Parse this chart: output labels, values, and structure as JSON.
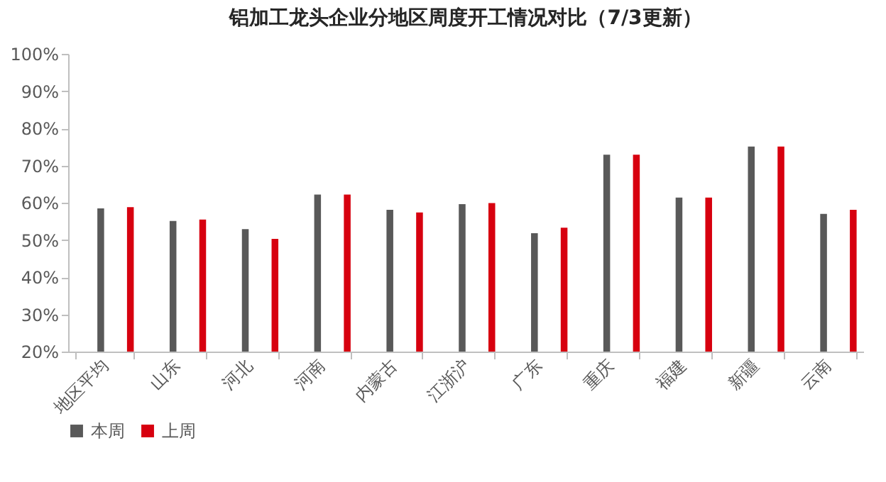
{
  "chart_data": {
    "type": "bar",
    "title": "铝加工龙头企业分地区周度开工情况对比（7/3更新）",
    "categories": [
      "地区平均",
      "山东",
      "河北",
      "河南",
      "内蒙古",
      "江浙沪",
      "广东",
      "重庆",
      "福建",
      "新疆",
      "云南"
    ],
    "series": [
      {
        "name": "本周",
        "color": "#595959",
        "values": [
          58.5,
          55.1,
          52.9,
          62.2,
          58.1,
          59.6,
          51.8,
          72.9,
          61.4,
          75.1,
          57.0
        ]
      },
      {
        "name": "上周",
        "color": "#d7000f",
        "values": [
          58.8,
          55.5,
          50.3,
          62.2,
          57.4,
          59.9,
          53.3,
          72.9,
          61.4,
          75.1,
          58.1
        ]
      }
    ],
    "ylim": [
      20,
      100
    ],
    "yticks": [
      {
        "value": 20,
        "label": "20%"
      },
      {
        "value": 30,
        "label": "30%"
      },
      {
        "value": 40,
        "label": "40%"
      },
      {
        "value": 50,
        "label": "50%"
      },
      {
        "value": 60,
        "label": "60%"
      },
      {
        "value": 70,
        "label": "70%"
      },
      {
        "value": 80,
        "label": "80%"
      },
      {
        "value": 90,
        "label": "90%"
      },
      {
        "value": 100,
        "label": "100%"
      }
    ],
    "grid": false,
    "legend": "bottom"
  }
}
